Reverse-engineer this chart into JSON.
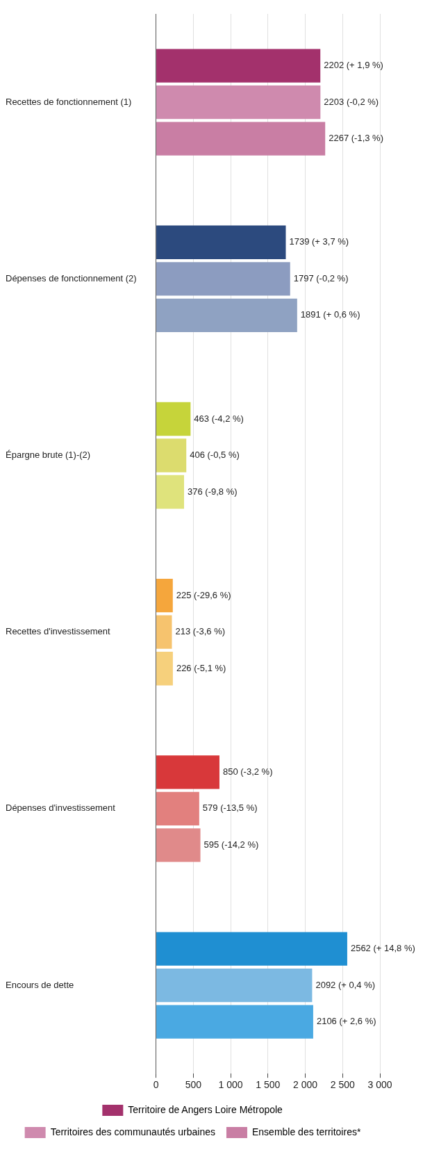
{
  "chart_data": {
    "type": "bar",
    "orientation": "horizontal",
    "categories": [
      "Recettes de fonctionnement (1)",
      "Dépenses de fonctionnement (2)",
      "Épargne brute (1)-(2)",
      "Recettes d'investissement",
      "Dépenses d'investissement",
      "Encours de dette"
    ],
    "series": [
      {
        "name": "Territoire de Angers Loire Métropole",
        "color": "#a3316c",
        "colors": [
          "#a3316c",
          "#2c4a7e",
          "#c6d43a",
          "#f5a63c",
          "#d8383a",
          "#1f8fd2"
        ],
        "values": [
          2202,
          1739,
          463,
          225,
          850,
          2562
        ],
        "value_labels": [
          "2202 (+ 1,9 %)",
          "1739 (+ 3,7 %)",
          "463 (-4,2 %)",
          "225 (-29,6 %)",
          "850 (-3,2 %)",
          "2562 (+ 14,8 %)"
        ]
      },
      {
        "name": "Territoires des communautés urbaines",
        "color": "#cf8aae",
        "colors": [
          "#cf8aae",
          "#8c9cc0",
          "#dcdc6e",
          "#f6c36e",
          "#e2807e",
          "#7cb9e2"
        ],
        "values": [
          2203,
          1797,
          406,
          213,
          579,
          2092
        ],
        "value_labels": [
          "2203 (-0,2 %)",
          "1797 (-0,2 %)",
          "406 (-0,5 %)",
          "213 (-3,6 %)",
          "579 (-13,5 %)",
          "2092 (+ 0,4 %)"
        ]
      },
      {
        "name": "Ensemble des territoires*",
        "color": "#c97ea4",
        "colors": [
          "#c97ea4",
          "#8fa2c2",
          "#dfe37c",
          "#f6d07c",
          "#e08a8a",
          "#4aa9e2"
        ],
        "values": [
          2267,
          1891,
          376,
          226,
          595,
          2106
        ],
        "value_labels": [
          "2267 (-1,3 %)",
          "1891 (+ 0,6 %)",
          "376 (-9,8 %)",
          "226 (-5,1 %)",
          "595 (-14,2 %)",
          "2106 (+ 2,6 %)"
        ]
      }
    ],
    "xlim": [
      0,
      3000
    ],
    "xticks": [
      0,
      500,
      {
        "value": 1000,
        "label": "1 000"
      },
      {
        "value": 1500,
        "label": "1 500"
      },
      {
        "value": 2000,
        "label": "2 000"
      },
      {
        "value": 2500,
        "label": "2 500"
      },
      {
        "value": 3000,
        "label": "3 000"
      }
    ],
    "grid": "x",
    "legend": "bottom"
  }
}
